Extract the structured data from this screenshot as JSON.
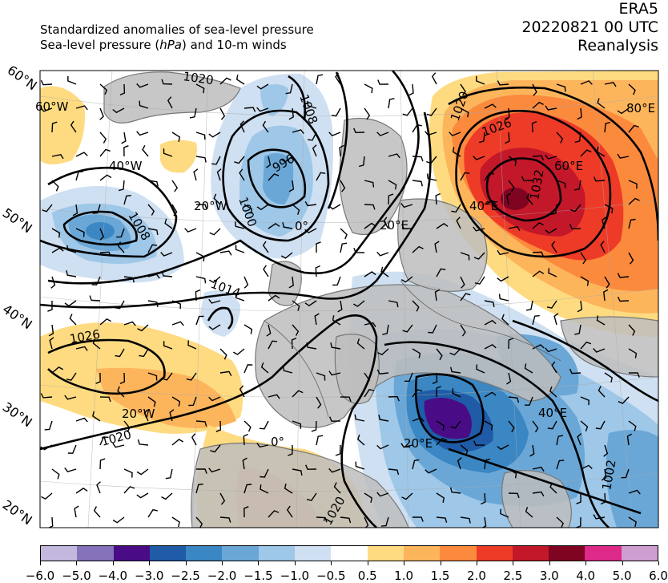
{
  "header": {
    "line1": "Standardized anomalies of sea-level pressure",
    "line2_pre": "Sea-level pressure (",
    "line2_unit": "hPa",
    "line2_post": ") and 10-m winds",
    "model": "ERA5",
    "datetime": "20220821 00 UTC",
    "product": "Reanalysis"
  },
  "lat_labels": [
    "60°N",
    "50°N",
    "40°N",
    "30°N",
    "20°N"
  ],
  "lon_labels": [
    {
      "text": "60°W"
    },
    {
      "text": "40°W"
    },
    {
      "text": "20°W"
    },
    {
      "text": "0°"
    },
    {
      "text": "20°E"
    },
    {
      "text": "60°E"
    },
    {
      "text": "40°E"
    },
    {
      "text": "80°E"
    },
    {
      "text": "20°W"
    },
    {
      "text": "0°"
    },
    {
      "text": "20°E"
    },
    {
      "text": "40°E"
    }
  ],
  "isobar_labels": [
    "1020",
    "1008",
    "996",
    "1000",
    "1008",
    "1014",
    "1026",
    "1020",
    "1020",
    "1026",
    "1032",
    "1002",
    "1020"
  ],
  "colorbar": {
    "ticks": [
      "−6.0",
      "−5.0",
      "−4.0",
      "−3.0",
      "−2.5",
      "−2.0",
      "−1.5",
      "−1.0",
      "−0.5",
      "0.5",
      "1.0",
      "1.5",
      "2.0",
      "2.5",
      "3.0",
      "4.0",
      "5.0",
      "6.0"
    ],
    "colors": [
      "#c3b8dd",
      "#8572ba",
      "#4a0c86",
      "#1f5ba6",
      "#3a87c4",
      "#6aa7d6",
      "#9ec7e8",
      "#cfe0f2",
      "#ffffff",
      "#fedb80",
      "#fdb55c",
      "#fb8a3d",
      "#ee3b27",
      "#c3172a",
      "#7e0421",
      "#dd2a88",
      "#cf9ed1"
    ]
  }
}
